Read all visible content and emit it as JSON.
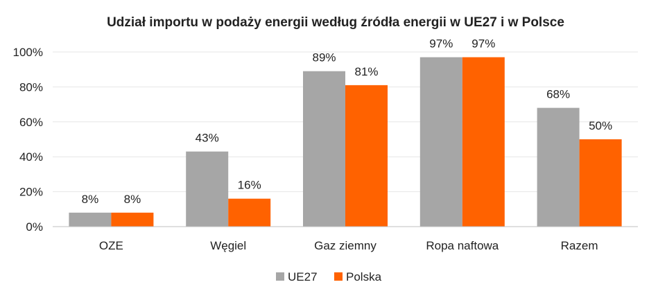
{
  "chart_data": {
    "type": "bar",
    "title": "Udział importu w podaży energii według źródła energii w UE27 i w Polsce",
    "xlabel": "",
    "ylabel": "",
    "categories": [
      "OZE",
      "Węgiel",
      "Gaz ziemny",
      "Ropa naftowa",
      "Razem"
    ],
    "series": [
      {
        "name": "UE27",
        "values": [
          8,
          43,
          89,
          97,
          68
        ],
        "color": "#a6a6a6",
        "labels": [
          "8%",
          "43%",
          "89%",
          "97%",
          "68%"
        ]
      },
      {
        "name": "Polska",
        "values": [
          8,
          16,
          81,
          97,
          50
        ],
        "color": "#ff6200",
        "labels": [
          "8%",
          "16%",
          "81%",
          "97%",
          "50%"
        ]
      }
    ],
    "ylim": [
      0,
      100
    ],
    "yticks": [
      0,
      20,
      40,
      60,
      80,
      100
    ],
    "ytick_labels": [
      "0%",
      "20%",
      "40%",
      "60%",
      "80%",
      "100%"
    ],
    "grid": true,
    "legend_position": "bottom"
  }
}
